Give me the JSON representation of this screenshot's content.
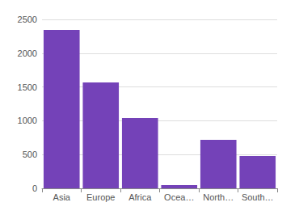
{
  "chart_data": {
    "type": "bar",
    "categories": [
      "Asia",
      "Europe",
      "Africa",
      "Ocea…",
      "North…",
      "South…"
    ],
    "values": [
      2344,
      1567,
      1041,
      48,
      718,
      478
    ],
    "color": "#7442b8",
    "ylim": [
      0,
      2500
    ],
    "yticks": [
      0,
      500,
      1000,
      1500,
      2000,
      2500
    ],
    "grid": true
  }
}
